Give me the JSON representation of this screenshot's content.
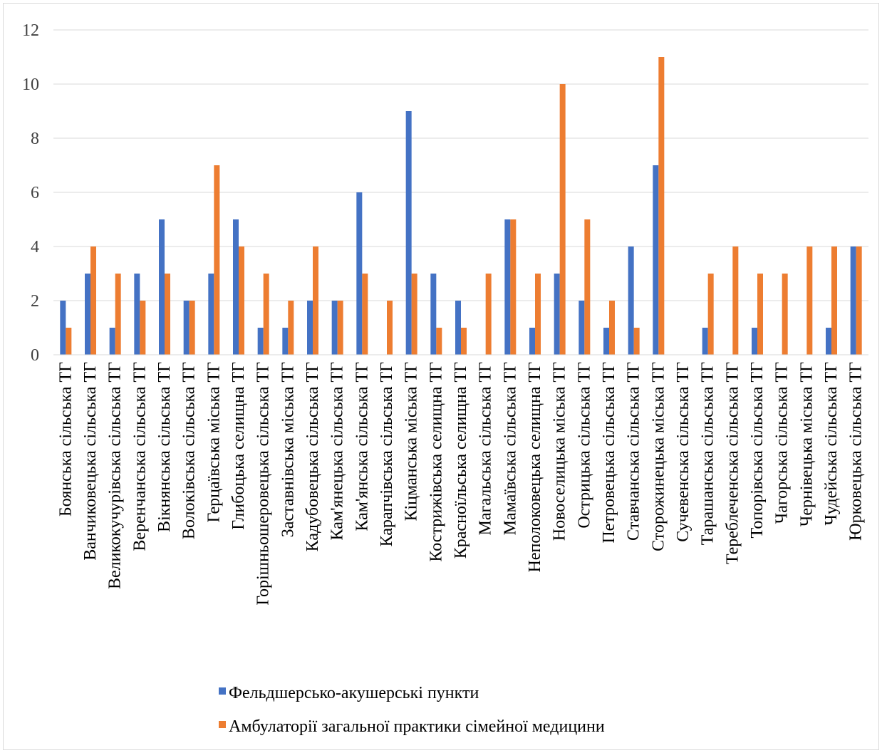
{
  "chart_data": {
    "type": "bar",
    "title": "",
    "xlabel": "",
    "ylabel": "",
    "ylim": [
      0,
      12
    ],
    "yticks": [
      0,
      2,
      4,
      6,
      8,
      10,
      12
    ],
    "grid": true,
    "legend_position": "bottom",
    "categories": [
      "Боянська сільська ТГ",
      "Ванчиковецька сільська ТГ",
      "Великокучурівська сільська ТГ",
      "Веренчанська сільська ТГ",
      "Вікнянська сільська ТГ",
      "Волоківська сільська ТГ",
      "Герцаївська міська ТГ",
      "Глибоцька селищна ТГ",
      "Горішньошеровецька сільська ТГ",
      "Заставнівська міська ТГ",
      "Кадубовецька сільська ТГ",
      "Кам'янецька сільська ТГ",
      "Кам'янська сільська ТГ",
      "Карапчівська сільська ТГ",
      "Кіцманська міська ТГ",
      "Кострижівська селищна ТГ",
      "Красноїльська селищна ТГ",
      "Магальська сільська ТГ",
      "Мамаївська сільська ТГ",
      "Неполоковецька селищна ТГ",
      "Новоселицька міська ТГ",
      "Острицька сільська ТГ",
      "Петровецька сільська ТГ",
      "Ставчанська сільська ТГ",
      "Сторожинецька міська ТГ",
      "Сучевенська сільська ТГ",
      "Тарашанська сільська ТГ",
      "Тереблеченська сільська ТГ",
      "Топорівська сільська ТГ",
      "Чагорська сільська ТГ",
      "Чернівецька міська ТГ",
      "Чудейська сільська ТГ",
      "Юрковецька сільська ТГ"
    ],
    "series": [
      {
        "name": "Фельдшерсько-акушерські пункти",
        "color": "#4472c4",
        "values": [
          2,
          3,
          1,
          3,
          5,
          2,
          3,
          5,
          1,
          1,
          2,
          2,
          6,
          0,
          9,
          3,
          2,
          0,
          5,
          1,
          3,
          2,
          1,
          4,
          7,
          0,
          1,
          0,
          1,
          0,
          0,
          1,
          4
        ]
      },
      {
        "name": "Амбулаторії загальної практики сімейної медицини",
        "color": "#ed7d31",
        "values": [
          1,
          4,
          3,
          2,
          3,
          2,
          7,
          4,
          3,
          2,
          4,
          2,
          3,
          2,
          3,
          1,
          1,
          3,
          5,
          3,
          10,
          5,
          2,
          1,
          11,
          0,
          3,
          4,
          3,
          3,
          4,
          4,
          4
        ]
      }
    ]
  }
}
